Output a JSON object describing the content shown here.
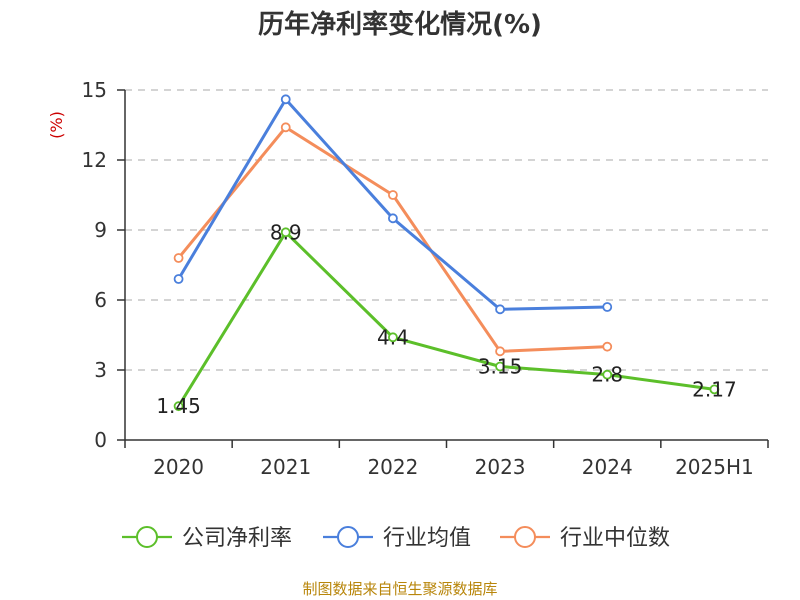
{
  "chart_data": {
    "type": "line",
    "title": "历年净利率变化情况(%)",
    "ylabel": "(%)",
    "xlabel": "",
    "categories": [
      "2020",
      "2021",
      "2022",
      "2023",
      "2024",
      "2025H1"
    ],
    "ylim": [
      0,
      15
    ],
    "yticks": [
      "0",
      "3",
      "6",
      "9",
      "12",
      "15"
    ],
    "grid": "horizontal-dashed",
    "legend_position": "bottom",
    "series": [
      {
        "name": "公司净利率",
        "color": "#5cbf2a",
        "values": [
          1.45,
          8.9,
          4.4,
          3.15,
          2.8,
          2.17
        ],
        "labels": [
          "1.45",
          "8.9",
          "4.4",
          "3.15",
          "2.8",
          "2.17"
        ]
      },
      {
        "name": "行业均值",
        "color": "#4a7fdc",
        "values": [
          6.9,
          14.6,
          9.5,
          5.6,
          5.7,
          null
        ]
      },
      {
        "name": "行业中位数",
        "color": "#f48d5b",
        "values": [
          7.8,
          13.4,
          10.5,
          3.8,
          4.0,
          null
        ]
      }
    ]
  },
  "source": "制图数据来自恒生聚源数据库"
}
